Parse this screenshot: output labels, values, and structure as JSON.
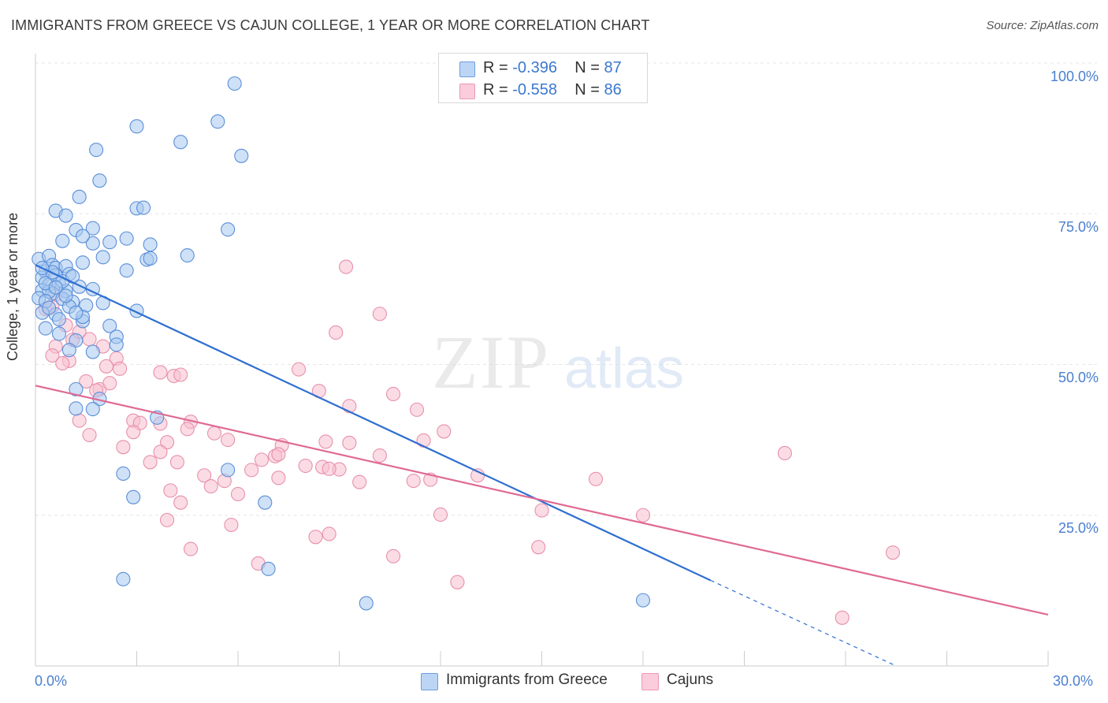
{
  "title": "IMMIGRANTS FROM GREECE VS CAJUN COLLEGE, 1 YEAR OR MORE CORRELATION CHART",
  "source": "Source: ZipAtlas.com",
  "watermark": {
    "zip": "ZIP",
    "atlas": "atlas"
  },
  "legend": {
    "rows": [
      {
        "r_label": "R =",
        "r_value": "-0.396",
        "n_label": "N =",
        "n_value": "87",
        "color": "#a8c8f0"
      },
      {
        "r_label": "R =",
        "r_value": "-0.558",
        "n_label": "N =",
        "n_value": "86",
        "color": "#f8b8cc"
      }
    ]
  },
  "bottom_legend": {
    "series1": "Immigrants from Greece",
    "series2": "Cajuns"
  },
  "colors": {
    "blue_fill": "#a8c8f0",
    "blue_stroke": "#5a8fd8",
    "blue_line": "#2f6fd0",
    "pink_fill": "#f8c0d0",
    "pink_stroke": "#e890ac",
    "pink_line": "#e06a94",
    "grid": "#e6e6e6",
    "tick_text": "#4a7fd0"
  },
  "chart_data": {
    "type": "scatter",
    "title": "IMMIGRANTS FROM GREECE VS CAJUN COLLEGE, 1 YEAR OR MORE CORRELATION CHART",
    "xlabel": "",
    "ylabel": "College, 1 year or more",
    "xlim": [
      0,
      30
    ],
    "ylim": [
      0,
      100
    ],
    "x_tick_labels": [
      "0.0%",
      "30.0%"
    ],
    "y_tick_labels": [
      "100.0%",
      "75.0%",
      "50.0%",
      "25.0%"
    ],
    "y_ticks": [
      100,
      75,
      50,
      25
    ],
    "grid": true,
    "legend_position": "top-center",
    "series": [
      {
        "name": "Immigrants from Greece",
        "points": [
          [
            5.9,
            96.6
          ],
          [
            3.0,
            89.5
          ],
          [
            5.4,
            90.3
          ],
          [
            4.3,
            86.9
          ],
          [
            1.8,
            85.6
          ],
          [
            6.1,
            84.6
          ],
          [
            1.9,
            80.5
          ],
          [
            1.3,
            77.8
          ],
          [
            0.6,
            75.5
          ],
          [
            0.9,
            74.7
          ],
          [
            3.0,
            75.9
          ],
          [
            3.2,
            76.0
          ],
          [
            1.2,
            72.3
          ],
          [
            1.7,
            72.6
          ],
          [
            5.7,
            72.4
          ],
          [
            0.8,
            70.5
          ],
          [
            1.7,
            70.1
          ],
          [
            2.2,
            70.3
          ],
          [
            2.7,
            70.9
          ],
          [
            3.4,
            69.9
          ],
          [
            1.4,
            71.3
          ],
          [
            0.1,
            67.5
          ],
          [
            0.4,
            68.0
          ],
          [
            0.5,
            66.5
          ],
          [
            0.3,
            65.4
          ],
          [
            0.6,
            66.0
          ],
          [
            0.9,
            66.3
          ],
          [
            1.4,
            66.9
          ],
          [
            2.0,
            67.8
          ],
          [
            3.3,
            67.4
          ],
          [
            4.5,
            68.1
          ],
          [
            0.2,
            64.4
          ],
          [
            0.4,
            63.2
          ],
          [
            0.7,
            63.4
          ],
          [
            0.9,
            62.2
          ],
          [
            1.3,
            62.9
          ],
          [
            1.7,
            62.5
          ],
          [
            2.7,
            65.6
          ],
          [
            3.4,
            67.6
          ],
          [
            0.2,
            62.3
          ],
          [
            0.5,
            61.8
          ],
          [
            0.8,
            60.9
          ],
          [
            1.1,
            60.4
          ],
          [
            1.5,
            59.8
          ],
          [
            0.2,
            58.6
          ],
          [
            0.6,
            58.3
          ],
          [
            1.0,
            59.6
          ],
          [
            1.4,
            57.2
          ],
          [
            2.2,
            56.4
          ],
          [
            3.0,
            58.9
          ],
          [
            0.3,
            56.0
          ],
          [
            0.7,
            55.1
          ],
          [
            1.2,
            54.0
          ],
          [
            2.4,
            54.6
          ],
          [
            1.0,
            52.4
          ],
          [
            1.7,
            52.1
          ],
          [
            2.4,
            53.3
          ],
          [
            0.4,
            62.1
          ],
          [
            0.3,
            63.5
          ],
          [
            0.6,
            64.8
          ],
          [
            0.5,
            65.3
          ],
          [
            1.0,
            65.0
          ],
          [
            0.2,
            66.0
          ],
          [
            0.1,
            61.0
          ],
          [
            1.9,
            44.3
          ],
          [
            3.6,
            41.2
          ],
          [
            1.7,
            42.6
          ],
          [
            1.2,
            45.9
          ],
          [
            1.2,
            42.7
          ],
          [
            5.7,
            32.5
          ],
          [
            2.6,
            31.9
          ],
          [
            2.9,
            28.0
          ],
          [
            6.8,
            27.1
          ],
          [
            6.9,
            16.1
          ],
          [
            2.6,
            14.4
          ],
          [
            9.8,
            10.4
          ],
          [
            18.0,
            10.9
          ],
          [
            0.3,
            60.5
          ],
          [
            0.8,
            63.8
          ],
          [
            1.1,
            64.6
          ],
          [
            0.6,
            62.8
          ],
          [
            0.9,
            61.4
          ],
          [
            2.0,
            60.2
          ],
          [
            1.4,
            57.9
          ],
          [
            0.4,
            59.4
          ],
          [
            0.7,
            57.5
          ],
          [
            1.2,
            58.6
          ]
        ]
      },
      {
        "name": "Cajuns",
        "points": [
          [
            9.2,
            66.2
          ],
          [
            10.2,
            58.4
          ],
          [
            0.3,
            59.2
          ],
          [
            0.5,
            59.7
          ],
          [
            0.9,
            56.5
          ],
          [
            1.3,
            55.4
          ],
          [
            8.9,
            55.3
          ],
          [
            0.6,
            53.0
          ],
          [
            1.6,
            54.2
          ],
          [
            2.0,
            53.0
          ],
          [
            0.5,
            51.5
          ],
          [
            1.0,
            50.6
          ],
          [
            2.4,
            51.0
          ],
          [
            2.5,
            49.3
          ],
          [
            3.7,
            48.7
          ],
          [
            4.1,
            48.1
          ],
          [
            7.8,
            49.2
          ],
          [
            10.6,
            45.1
          ],
          [
            1.5,
            47.2
          ],
          [
            1.9,
            45.9
          ],
          [
            2.2,
            46.9
          ],
          [
            8.4,
            45.6
          ],
          [
            9.3,
            43.1
          ],
          [
            11.3,
            42.5
          ],
          [
            12.1,
            38.9
          ],
          [
            1.3,
            40.7
          ],
          [
            2.9,
            40.7
          ],
          [
            3.1,
            40.3
          ],
          [
            3.7,
            40.2
          ],
          [
            4.6,
            40.5
          ],
          [
            5.3,
            38.6
          ],
          [
            5.7,
            37.5
          ],
          [
            7.3,
            36.6
          ],
          [
            8.6,
            37.2
          ],
          [
            9.3,
            37.0
          ],
          [
            10.2,
            34.9
          ],
          [
            11.5,
            37.4
          ],
          [
            1.6,
            38.3
          ],
          [
            2.9,
            38.8
          ],
          [
            3.9,
            37.1
          ],
          [
            4.5,
            39.3
          ],
          [
            6.7,
            34.2
          ],
          [
            7.1,
            34.8
          ],
          [
            7.2,
            35.1
          ],
          [
            8.0,
            33.2
          ],
          [
            8.5,
            33.0
          ],
          [
            9.0,
            32.6
          ],
          [
            2.6,
            36.3
          ],
          [
            3.7,
            35.5
          ],
          [
            3.4,
            33.8
          ],
          [
            4.2,
            33.8
          ],
          [
            5.0,
            31.6
          ],
          [
            6.4,
            32.5
          ],
          [
            5.6,
            30.7
          ],
          [
            7.2,
            31.2
          ],
          [
            8.7,
            32.7
          ],
          [
            9.6,
            30.5
          ],
          [
            11.2,
            30.7
          ],
          [
            11.7,
            30.9
          ],
          [
            13.1,
            31.6
          ],
          [
            16.6,
            31.0
          ],
          [
            22.2,
            35.3
          ],
          [
            4.0,
            29.1
          ],
          [
            5.2,
            29.8
          ],
          [
            6.0,
            28.5
          ],
          [
            4.3,
            27.1
          ],
          [
            3.9,
            24.2
          ],
          [
            5.8,
            23.4
          ],
          [
            12.0,
            25.1
          ],
          [
            15.0,
            25.8
          ],
          [
            18.0,
            25.0
          ],
          [
            4.6,
            19.4
          ],
          [
            8.3,
            21.4
          ],
          [
            8.7,
            21.9
          ],
          [
            10.6,
            18.2
          ],
          [
            14.9,
            19.7
          ],
          [
            6.6,
            17.0
          ],
          [
            12.5,
            13.9
          ],
          [
            25.4,
            18.8
          ],
          [
            23.9,
            8.0
          ],
          [
            4.3,
            48.3
          ],
          [
            1.1,
            54.1
          ],
          [
            0.8,
            50.2
          ],
          [
            2.1,
            49.7
          ],
          [
            1.8,
            45.7
          ],
          [
            0.6,
            61.6
          ]
        ]
      }
    ],
    "trendlines": [
      {
        "series": "Immigrants from Greece",
        "x": [
          0,
          20.0
        ],
        "y": [
          66.5,
          14.2
        ],
        "dashed_extension": {
          "x": [
            20.0,
            25.5
          ],
          "y": [
            14.2,
            0.0
          ]
        }
      },
      {
        "series": "Cajuns",
        "x": [
          0,
          30
        ],
        "y": [
          46.5,
          8.5
        ]
      }
    ]
  }
}
